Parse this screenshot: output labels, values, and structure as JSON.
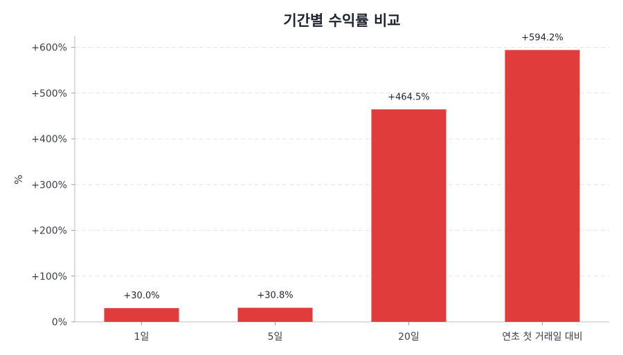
{
  "chart_data": {
    "type": "bar",
    "title": "기간별 수익률 비교",
    "xlabel": "",
    "ylabel": "%",
    "categories": [
      "1일",
      "5일",
      "20일",
      "연초 첫 거래일 대비"
    ],
    "values": [
      30.0,
      30.8,
      464.5,
      594.2
    ],
    "data_labels": [
      "+30.0%",
      "+30.8%",
      "+464.5%",
      "+594.2%"
    ],
    "y_ticks": [
      0,
      100,
      200,
      300,
      400,
      500,
      600
    ],
    "y_tick_labels": [
      "0%",
      "+100%",
      "+200%",
      "+300%",
      "+400%",
      "+500%",
      "+600%"
    ],
    "ylim": [
      0,
      625
    ],
    "grid": true,
    "legend": "none",
    "bar_color": "#e03c3c"
  }
}
